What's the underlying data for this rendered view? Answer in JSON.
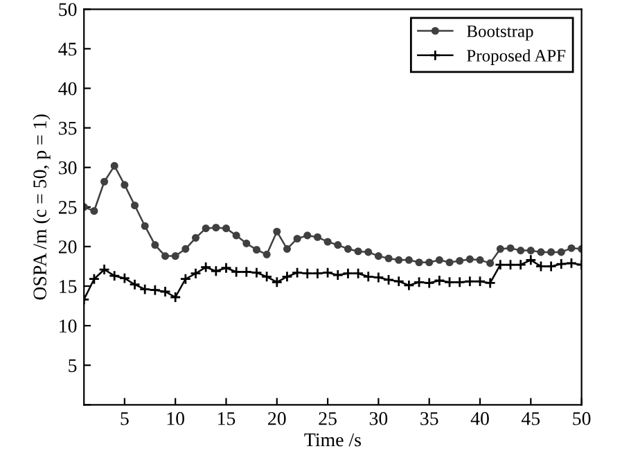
{
  "chart_data": {
    "type": "line",
    "xlabel": "Time /s",
    "ylabel": "OSPA /m (c = 50, p = 1)",
    "x": [
      1,
      2,
      3,
      4,
      5,
      6,
      7,
      8,
      9,
      10,
      11,
      12,
      13,
      14,
      15,
      16,
      17,
      18,
      19,
      20,
      21,
      22,
      23,
      24,
      25,
      26,
      27,
      28,
      29,
      30,
      31,
      32,
      33,
      34,
      35,
      36,
      37,
      38,
      39,
      40,
      41,
      42,
      43,
      44,
      45,
      46,
      47,
      48,
      49,
      50
    ],
    "series": [
      {
        "name": "Bootstrap",
        "color": "#404040",
        "marker": "circle",
        "values": [
          25.0,
          24.5,
          28.2,
          30.2,
          27.8,
          25.2,
          22.6,
          20.2,
          18.8,
          18.8,
          19.7,
          21.1,
          22.3,
          22.4,
          22.3,
          21.4,
          20.4,
          19.6,
          19.0,
          21.9,
          19.7,
          21.0,
          21.4,
          21.2,
          20.6,
          20.2,
          19.7,
          19.4,
          19.3,
          18.8,
          18.5,
          18.3,
          18.3,
          18.0,
          18.0,
          18.3,
          18.0,
          18.2,
          18.4,
          18.3,
          17.9,
          19.7,
          19.8,
          19.5,
          19.5,
          19.3,
          19.3,
          19.3,
          19.8,
          19.7
        ]
      },
      {
        "name": "Proposed APF",
        "color": "#000000",
        "marker": "cross",
        "values": [
          13.3,
          15.9,
          17.1,
          16.3,
          16.0,
          15.2,
          14.6,
          14.5,
          14.3,
          13.6,
          15.9,
          16.6,
          17.4,
          16.9,
          17.3,
          16.8,
          16.8,
          16.7,
          16.2,
          15.5,
          16.2,
          16.7,
          16.6,
          16.6,
          16.7,
          16.4,
          16.6,
          16.6,
          16.2,
          16.1,
          15.8,
          15.6,
          15.1,
          15.5,
          15.4,
          15.7,
          15.5,
          15.5,
          15.6,
          15.6,
          15.4,
          17.7,
          17.7,
          17.7,
          18.3,
          17.5,
          17.5,
          17.8,
          17.9,
          17.7
        ]
      }
    ],
    "xlim": [
      1,
      50
    ],
    "xticks": [
      5,
      10,
      15,
      20,
      25,
      30,
      35,
      40,
      45,
      50
    ],
    "ylim": [
      0,
      50
    ],
    "yticks": [
      {
        "value": 0,
        "label": null
      },
      5,
      10,
      15,
      20,
      25,
      30,
      35,
      40,
      45,
      50
    ],
    "grid": false,
    "legend": "top right",
    "line_style": "solid"
  }
}
